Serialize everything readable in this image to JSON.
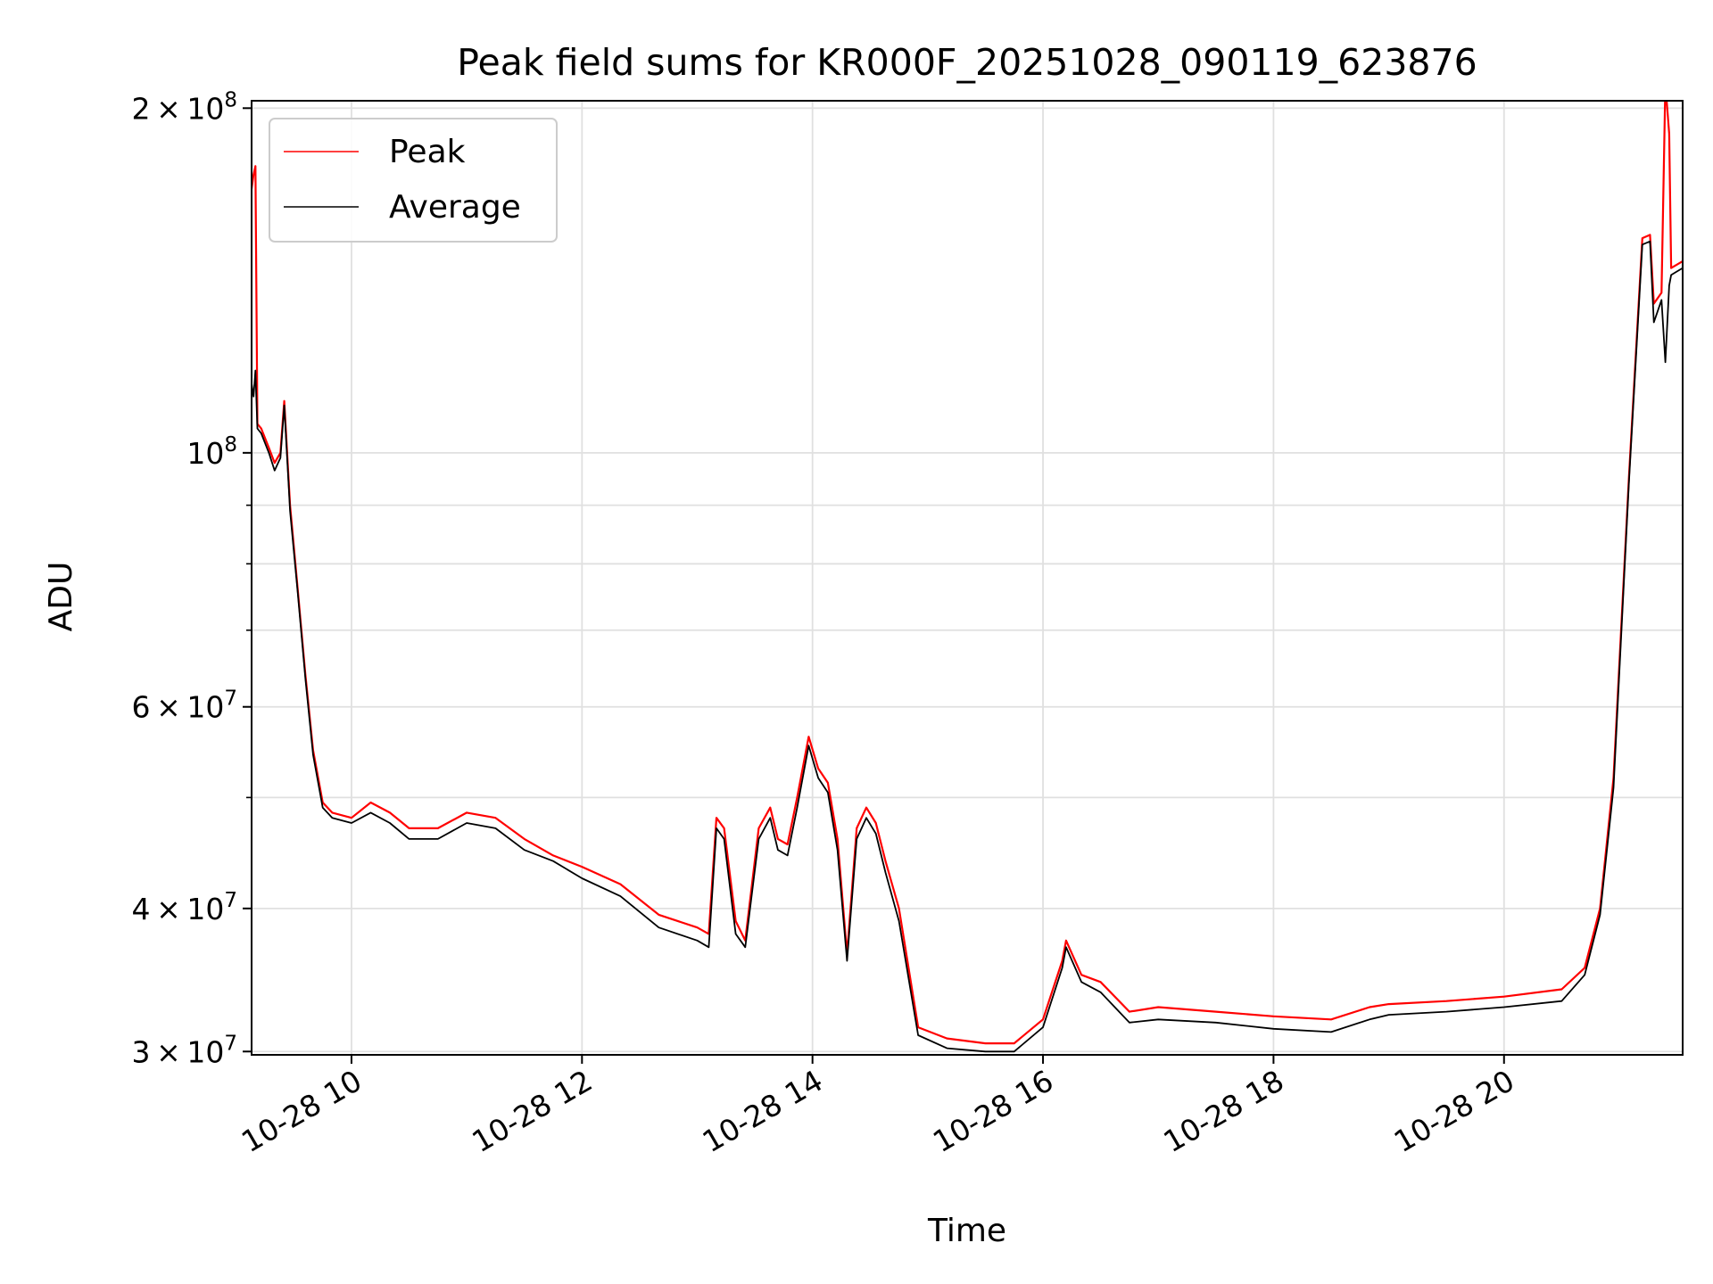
{
  "chart_data": {
    "type": "line",
    "title": "Peak field sums for KR000F_20251028_090119_623876",
    "xlabel": "Time",
    "ylabel": "ADU",
    "yscale": "log",
    "ylim": [
      29800000,
      203000000
    ],
    "xlim": [
      "10-28 09:08",
      "10-28 21:33"
    ],
    "grid": true,
    "legend": "top-left",
    "x_ticks": [
      {
        "time": "10-28 10:00",
        "label": "10-28 10"
      },
      {
        "time": "10-28 12:00",
        "label": "10-28 12"
      },
      {
        "time": "10-28 14:00",
        "label": "10-28 14"
      },
      {
        "time": "10-28 16:00",
        "label": "10-28 16"
      },
      {
        "time": "10-28 18:00",
        "label": "10-28 18"
      },
      {
        "time": "10-28 20:00",
        "label": "10-28 20"
      }
    ],
    "y_ticks": [
      {
        "value": 30000000,
        "mantissa": "3",
        "exp": "7"
      },
      {
        "value": 40000000,
        "mantissa": "4",
        "exp": "7"
      },
      {
        "value": 60000000,
        "mantissa": "6",
        "exp": "7"
      },
      {
        "value": 100000000,
        "mantissa": "",
        "exp": "8"
      },
      {
        "value": 200000000,
        "mantissa": "2",
        "exp": "8"
      }
    ],
    "y_minor_ticks": [
      50000000,
      70000000,
      80000000,
      90000000
    ],
    "colors": {
      "peak": "#ff0000",
      "average": "#000000"
    },
    "series": [
      {
        "name": "Peak",
        "color": "#ff0000",
        "points": [
          [
            "10-28 09:08",
            170000000
          ],
          [
            "10-28 09:09",
            175000000
          ],
          [
            "10-28 09:10",
            178000000
          ],
          [
            "10-28 09:11",
            106000000
          ],
          [
            "10-28 09:13",
            105000000
          ],
          [
            "10-28 09:17",
            101000000
          ],
          [
            "10-28 09:20",
            98000000
          ],
          [
            "10-28 09:23",
            100000000
          ],
          [
            "10-28 09:25",
            111000000
          ],
          [
            "10-28 09:28",
            90000000
          ],
          [
            "10-28 09:32",
            76000000
          ],
          [
            "10-28 09:36",
            64000000
          ],
          [
            "10-28 09:40",
            55000000
          ],
          [
            "10-28 09:45",
            49500000
          ],
          [
            "10-28 09:50",
            48500000
          ],
          [
            "10-28 10:00",
            48000000
          ],
          [
            "10-28 10:10",
            49500000
          ],
          [
            "10-28 10:20",
            48500000
          ],
          [
            "10-28 10:30",
            47000000
          ],
          [
            "10-28 10:45",
            47000000
          ],
          [
            "10-28 11:00",
            48500000
          ],
          [
            "10-28 11:15",
            48000000
          ],
          [
            "10-28 11:30",
            46000000
          ],
          [
            "10-28 11:45",
            44500000
          ],
          [
            "10-28 12:00",
            43500000
          ],
          [
            "10-28 12:20",
            42000000
          ],
          [
            "10-28 12:40",
            39500000
          ],
          [
            "10-28 13:00",
            38500000
          ],
          [
            "10-28 13:06",
            38000000
          ],
          [
            "10-28 13:10",
            48000000
          ],
          [
            "10-28 13:14",
            47000000
          ],
          [
            "10-28 13:20",
            39000000
          ],
          [
            "10-28 13:25",
            37500000
          ],
          [
            "10-28 13:32",
            47000000
          ],
          [
            "10-28 13:38",
            49000000
          ],
          [
            "10-28 13:42",
            46000000
          ],
          [
            "10-28 13:47",
            45500000
          ],
          [
            "10-28 13:52",
            50000000
          ],
          [
            "10-28 13:58",
            56500000
          ],
          [
            "10-28 14:03",
            53000000
          ],
          [
            "10-28 14:08",
            51500000
          ],
          [
            "10-28 14:13",
            46000000
          ],
          [
            "10-28 14:18",
            36500000
          ],
          [
            "10-28 14:23",
            47000000
          ],
          [
            "10-28 14:28",
            49000000
          ],
          [
            "10-28 14:33",
            47500000
          ],
          [
            "10-28 14:38",
            44000000
          ],
          [
            "10-28 14:45",
            40000000
          ],
          [
            "10-28 14:55",
            31500000
          ],
          [
            "10-28 15:10",
            30800000
          ],
          [
            "10-28 15:30",
            30500000
          ],
          [
            "10-28 15:45",
            30500000
          ],
          [
            "10-28 16:00",
            32000000
          ],
          [
            "10-28 16:10",
            36000000
          ],
          [
            "10-28 16:12",
            37500000
          ],
          [
            "10-28 16:20",
            35000000
          ],
          [
            "10-28 16:30",
            34500000
          ],
          [
            "10-28 16:45",
            32500000
          ],
          [
            "10-28 17:00",
            32800000
          ],
          [
            "10-28 17:30",
            32500000
          ],
          [
            "10-28 18:00",
            32200000
          ],
          [
            "10-28 18:30",
            32000000
          ],
          [
            "10-28 18:50",
            32800000
          ],
          [
            "10-28 19:00",
            33000000
          ],
          [
            "10-28 19:30",
            33200000
          ],
          [
            "10-28 20:00",
            33500000
          ],
          [
            "10-28 20:30",
            34000000
          ],
          [
            "10-28 20:42",
            35500000
          ],
          [
            "10-28 20:50",
            40000000
          ],
          [
            "10-28 20:57",
            52000000
          ],
          [
            "10-28 21:05",
            95000000
          ],
          [
            "10-28 21:12",
            154000000
          ],
          [
            "10-28 21:16",
            155000000
          ],
          [
            "10-28 21:18",
            135000000
          ],
          [
            "10-28 21:22",
            138000000
          ],
          [
            "10-28 21:24",
            210000000
          ],
          [
            "10-28 21:26",
            190000000
          ],
          [
            "10-28 21:27",
            145000000
          ],
          [
            "10-28 21:30",
            146000000
          ],
          [
            "10-28 21:33",
            147000000
          ]
        ]
      },
      {
        "name": "Average",
        "color": "#000000",
        "points": [
          [
            "10-28 09:08",
            115000000
          ],
          [
            "10-28 09:09",
            112000000
          ],
          [
            "10-28 09:10",
            118000000
          ],
          [
            "10-28 09:11",
            105000000
          ],
          [
            "10-28 09:13",
            104000000
          ],
          [
            "10-28 09:17",
            100000000
          ],
          [
            "10-28 09:20",
            96500000
          ],
          [
            "10-28 09:23",
            99000000
          ],
          [
            "10-28 09:25",
            110000000
          ],
          [
            "10-28 09:28",
            89000000
          ],
          [
            "10-28 09:32",
            75500000
          ],
          [
            "10-28 09:36",
            63500000
          ],
          [
            "10-28 09:40",
            54500000
          ],
          [
            "10-28 09:45",
            49000000
          ],
          [
            "10-28 09:50",
            48000000
          ],
          [
            "10-28 10:00",
            47500000
          ],
          [
            "10-28 10:10",
            48500000
          ],
          [
            "10-28 10:20",
            47500000
          ],
          [
            "10-28 10:30",
            46000000
          ],
          [
            "10-28 10:45",
            46000000
          ],
          [
            "10-28 11:00",
            47500000
          ],
          [
            "10-28 11:15",
            47000000
          ],
          [
            "10-28 11:30",
            45000000
          ],
          [
            "10-28 11:45",
            44000000
          ],
          [
            "10-28 12:00",
            42500000
          ],
          [
            "10-28 12:20",
            41000000
          ],
          [
            "10-28 12:40",
            38500000
          ],
          [
            "10-28 13:00",
            37500000
          ],
          [
            "10-28 13:06",
            37000000
          ],
          [
            "10-28 13:10",
            47000000
          ],
          [
            "10-28 13:14",
            46000000
          ],
          [
            "10-28 13:20",
            38000000
          ],
          [
            "10-28 13:25",
            37000000
          ],
          [
            "10-28 13:32",
            46000000
          ],
          [
            "10-28 13:38",
            48000000
          ],
          [
            "10-28 13:42",
            45000000
          ],
          [
            "10-28 13:47",
            44500000
          ],
          [
            "10-28 13:52",
            49000000
          ],
          [
            "10-28 13:58",
            55500000
          ],
          [
            "10-28 14:03",
            52000000
          ],
          [
            "10-28 14:08",
            50500000
          ],
          [
            "10-28 14:13",
            45000000
          ],
          [
            "10-28 14:18",
            36000000
          ],
          [
            "10-28 14:23",
            46000000
          ],
          [
            "10-28 14:28",
            48000000
          ],
          [
            "10-28 14:33",
            46500000
          ],
          [
            "10-28 14:38",
            43000000
          ],
          [
            "10-28 14:45",
            39000000
          ],
          [
            "10-28 14:55",
            31000000
          ],
          [
            "10-28 15:10",
            30200000
          ],
          [
            "10-28 15:30",
            30000000
          ],
          [
            "10-28 15:45",
            30000000
          ],
          [
            "10-28 16:00",
            31500000
          ],
          [
            "10-28 16:10",
            35500000
          ],
          [
            "10-28 16:12",
            37000000
          ],
          [
            "10-28 16:20",
            34500000
          ],
          [
            "10-28 16:30",
            33800000
          ],
          [
            "10-28 16:45",
            31800000
          ],
          [
            "10-28 17:00",
            32000000
          ],
          [
            "10-28 17:30",
            31800000
          ],
          [
            "10-28 18:00",
            31400000
          ],
          [
            "10-28 18:30",
            31200000
          ],
          [
            "10-28 18:50",
            32000000
          ],
          [
            "10-28 19:00",
            32300000
          ],
          [
            "10-28 19:30",
            32500000
          ],
          [
            "10-28 20:00",
            32800000
          ],
          [
            "10-28 20:30",
            33200000
          ],
          [
            "10-28 20:42",
            35000000
          ],
          [
            "10-28 20:50",
            39500000
          ],
          [
            "10-28 20:57",
            51000000
          ],
          [
            "10-28 21:05",
            94000000
          ],
          [
            "10-28 21:12",
            152000000
          ],
          [
            "10-28 21:16",
            153000000
          ],
          [
            "10-28 21:18",
            130000000
          ],
          [
            "10-28 21:22",
            136000000
          ],
          [
            "10-28 21:24",
            120000000
          ],
          [
            "10-28 21:26",
            140000000
          ],
          [
            "10-28 21:27",
            143000000
          ],
          [
            "10-28 21:30",
            144000000
          ],
          [
            "10-28 21:33",
            145000000
          ]
        ]
      }
    ]
  }
}
